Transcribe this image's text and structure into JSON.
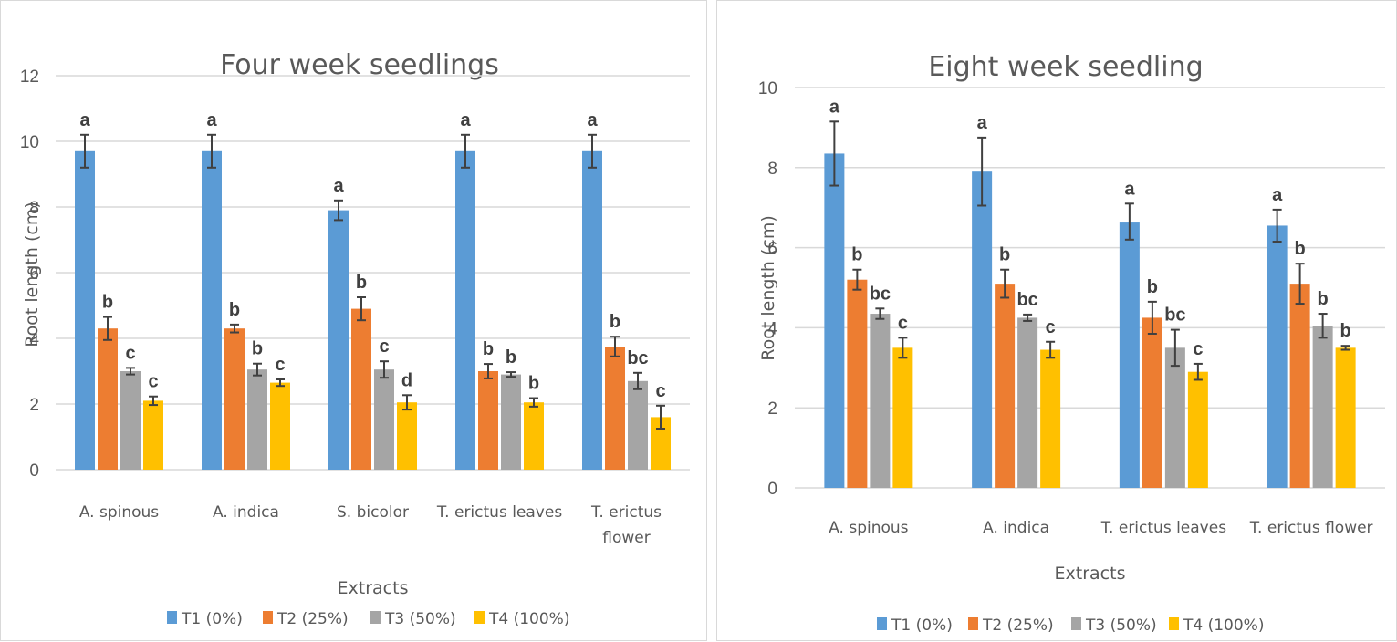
{
  "chart_data": [
    {
      "type": "bar",
      "title": "Four week seedlings",
      "xlabel": "Extracts",
      "ylabel": "Root length (cm)",
      "ylim": [
        0,
        12
      ],
      "yticks": [
        "0",
        "2",
        "4",
        "6",
        "8",
        "10",
        "12"
      ],
      "grid": true,
      "legend_position": "bottom",
      "categories": [
        [
          "A. spinous"
        ],
        [
          "A. indica"
        ],
        [
          "S. bicolor"
        ],
        [
          "T. erictus leaves"
        ],
        [
          "T. erictus",
          "flower"
        ]
      ],
      "series": [
        {
          "name": "T1 (0%)",
          "color": "#5B9BD5",
          "values": [
            9.7,
            9.7,
            7.9,
            9.7,
            9.7
          ],
          "errors": [
            0.5,
            0.5,
            0.3,
            0.5,
            0.5
          ],
          "letters": [
            "a",
            "a",
            "a",
            "a",
            "a"
          ]
        },
        {
          "name": "T2 (25%)",
          "color": "#ED7D31",
          "values": [
            4.3,
            4.3,
            4.9,
            3.0,
            3.75
          ],
          "errors": [
            0.35,
            0.12,
            0.35,
            0.22,
            0.3
          ],
          "letters": [
            "b",
            "b",
            "b",
            "b",
            "b"
          ]
        },
        {
          "name": "T3 (50%)",
          "color": "#A5A5A5",
          "values": [
            3.0,
            3.05,
            3.05,
            2.9,
            2.7
          ],
          "errors": [
            0.1,
            0.18,
            0.25,
            0.07,
            0.25
          ],
          "letters": [
            "c",
            "b",
            "c",
            "b",
            "bc"
          ]
        },
        {
          "name": "T4 (100%)",
          "color": "#FFC000",
          "values": [
            2.1,
            2.65,
            2.05,
            2.05,
            1.6
          ],
          "errors": [
            0.13,
            0.1,
            0.22,
            0.13,
            0.35
          ],
          "letters": [
            "c",
            "c",
            "d",
            "b",
            "c"
          ]
        }
      ]
    },
    {
      "type": "bar",
      "title": "Eight week seedling",
      "xlabel": "Extracts",
      "ylabel": "Root length (cm)",
      "ylim": [
        0,
        10
      ],
      "yticks": [
        "0",
        "2",
        "4",
        "6",
        "8",
        "10"
      ],
      "grid": true,
      "legend_position": "bottom",
      "categories": [
        [
          "A. spinous"
        ],
        [
          "A. indica"
        ],
        [
          "T. erictus leaves"
        ],
        [
          "T. erictus flower"
        ]
      ],
      "series": [
        {
          "name": "T1 (0%)",
          "color": "#5B9BD5",
          "values": [
            8.35,
            7.9,
            6.65,
            6.55
          ],
          "errors": [
            0.8,
            0.85,
            0.45,
            0.4
          ],
          "letters": [
            "a",
            "a",
            "a",
            "a"
          ]
        },
        {
          "name": "T2 (25%)",
          "color": "#ED7D31",
          "values": [
            5.2,
            5.1,
            4.25,
            5.1
          ],
          "errors": [
            0.25,
            0.35,
            0.4,
            0.5
          ],
          "letters": [
            "b",
            "b",
            "b",
            "b"
          ]
        },
        {
          "name": "T3 (50%)",
          "color": "#A5A5A5",
          "values": [
            4.35,
            4.25,
            3.5,
            4.05
          ],
          "errors": [
            0.13,
            0.08,
            0.45,
            0.3
          ],
          "letters": [
            "bc",
            "bc",
            "bc",
            "b"
          ]
        },
        {
          "name": "T4 (100%)",
          "color": "#FFC000",
          "values": [
            3.5,
            3.45,
            2.9,
            3.5
          ],
          "errors": [
            0.25,
            0.2,
            0.2,
            0.05
          ],
          "letters": [
            "c",
            "c",
            "c",
            "b"
          ]
        }
      ]
    }
  ]
}
